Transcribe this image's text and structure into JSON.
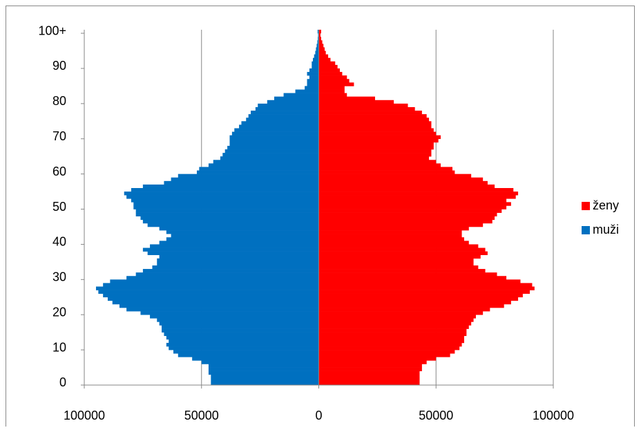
{
  "chart_data": {
    "type": "bar",
    "orientation": "horizontal",
    "categories": [
      "0",
      null,
      null,
      null,
      null,
      null,
      null,
      null,
      null,
      null,
      "10",
      null,
      null,
      null,
      null,
      null,
      null,
      null,
      null,
      null,
      "20",
      null,
      null,
      null,
      null,
      null,
      null,
      null,
      null,
      null,
      "30",
      null,
      null,
      null,
      null,
      null,
      null,
      null,
      null,
      null,
      "40",
      null,
      null,
      null,
      null,
      null,
      null,
      null,
      null,
      null,
      "50",
      null,
      null,
      null,
      null,
      null,
      null,
      null,
      null,
      null,
      "60",
      null,
      null,
      null,
      null,
      null,
      null,
      null,
      null,
      null,
      "70",
      null,
      null,
      null,
      null,
      null,
      null,
      null,
      null,
      null,
      "80",
      null,
      null,
      null,
      null,
      null,
      null,
      null,
      null,
      null,
      "90",
      null,
      null,
      null,
      null,
      null,
      null,
      null,
      null,
      null,
      "100+"
    ],
    "series": [
      {
        "name": "ženy",
        "color": "#ff0000",
        "values": [
          43000,
          43000,
          43000,
          43000,
          44000,
          44000,
          46000,
          50000,
          56000,
          58000,
          60000,
          61000,
          62000,
          62000,
          63000,
          63000,
          64000,
          65000,
          66000,
          67000,
          70000,
          73000,
          79000,
          82000,
          85000,
          87000,
          90000,
          92000,
          91000,
          86000,
          80000,
          76000,
          71000,
          68000,
          66000,
          66000,
          69000,
          72000,
          71000,
          68000,
          64000,
          62000,
          61000,
          61000,
          64000,
          70000,
          74000,
          75000,
          76000,
          78000,
          80000,
          82000,
          80000,
          84000,
          85000,
          83000,
          75000,
          72000,
          70000,
          65000,
          58000,
          57000,
          52000,
          50000,
          47000,
          48000,
          48000,
          49000,
          49000,
          51000,
          52000,
          50000,
          49000,
          48000,
          48000,
          47000,
          46000,
          44000,
          41000,
          38000,
          32000,
          24000,
          12000,
          11000,
          11000,
          15000,
          13000,
          12000,
          10000,
          9000,
          8000,
          7000,
          5000,
          4000,
          3000,
          2500,
          2000,
          1500,
          1000,
          700,
          1000
        ]
      },
      {
        "name": "muži",
        "color": "#0070c0",
        "values": [
          -46000,
          -46000,
          -46000,
          -47000,
          -47000,
          -47000,
          -50000,
          -54000,
          -60000,
          -62000,
          -64000,
          -65000,
          -64000,
          -65000,
          -66000,
          -67000,
          -67000,
          -68000,
          -69000,
          -72000,
          -76000,
          -82000,
          -85000,
          -88000,
          -90000,
          -92000,
          -94000,
          -95000,
          -92000,
          -89000,
          -82000,
          -78000,
          -75000,
          -71000,
          -69000,
          -69000,
          -68000,
          -73000,
          -75000,
          -72000,
          -68000,
          -65000,
          -63000,
          -65000,
          -68000,
          -73000,
          -75000,
          -76000,
          -78000,
          -78000,
          -79000,
          -79000,
          -80000,
          -82000,
          -83000,
          -80000,
          -75000,
          -66000,
          -63000,
          -60000,
          -52000,
          -51000,
          -47000,
          -45000,
          -42000,
          -41000,
          -40000,
          -39000,
          -38000,
          -38000,
          -38000,
          -37000,
          -36000,
          -34000,
          -33000,
          -31000,
          -30000,
          -29000,
          -27000,
          -26000,
          -22000,
          -19000,
          -15000,
          -10000,
          -6000,
          -5000,
          -5000,
          -4000,
          -5000,
          -4000,
          -3000,
          -3000,
          -2500,
          -2000,
          -1500,
          -1200,
          -900,
          -600,
          -400,
          -300,
          -500
        ]
      }
    ],
    "xlim": [
      -100000,
      100000
    ],
    "xticks": [
      {
        "value": -100000,
        "label": "100000"
      },
      {
        "value": -50000,
        "label": "50000"
      },
      0,
      50000,
      100000
    ],
    "grid": true,
    "legend": "right"
  }
}
